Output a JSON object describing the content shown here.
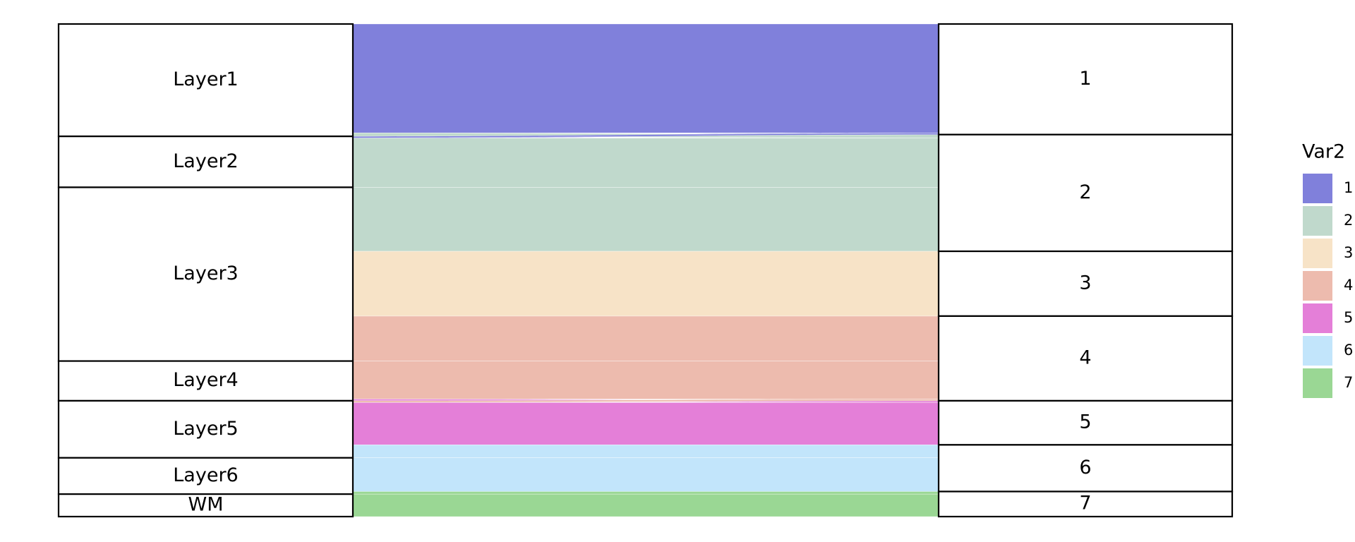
{
  "chart_data": {
    "type": "alluvial",
    "left_categories": [
      "Layer1",
      "Layer2",
      "Layer3",
      "Layer4",
      "Layer5",
      "Layer6",
      "WM"
    ],
    "right_categories": [
      "1",
      "2",
      "3",
      "4",
      "5",
      "6",
      "7"
    ],
    "legend_title": "Var2",
    "colors": [
      "#8080db",
      "#c0d9cc",
      "#f7e3c7",
      "#edbbae",
      "#e47fd8",
      "#c2e5fb",
      "#9ad794"
    ],
    "flows": [
      {
        "from": 0,
        "to": 0,
        "value": 126
      },
      {
        "from": 0,
        "to": 1,
        "value": 4
      },
      {
        "from": 1,
        "to": 0,
        "value": 2
      },
      {
        "from": 1,
        "to": 1,
        "value": 57
      },
      {
        "from": 2,
        "to": 1,
        "value": 74
      },
      {
        "from": 2,
        "to": 2,
        "value": 75
      },
      {
        "from": 2,
        "to": 3,
        "value": 52
      },
      {
        "from": 3,
        "to": 3,
        "value": 44
      },
      {
        "from": 3,
        "to": 4,
        "value": 2
      },
      {
        "from": 4,
        "to": 3,
        "value": 2
      },
      {
        "from": 4,
        "to": 4,
        "value": 49
      },
      {
        "from": 4,
        "to": 5,
        "value": 15
      },
      {
        "from": 5,
        "to": 5,
        "value": 39
      },
      {
        "from": 5,
        "to": 6,
        "value": 3
      },
      {
        "from": 6,
        "to": 6,
        "value": 26
      }
    ]
  }
}
